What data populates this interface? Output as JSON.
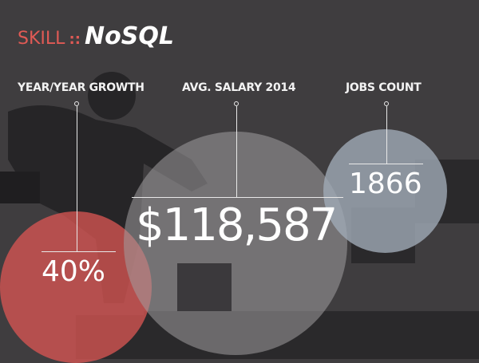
{
  "header": {
    "prefix": "SKILL",
    "separator": "::",
    "skill": "NoSQL"
  },
  "metrics": [
    {
      "label": "YEAR/YEAR GROWTH",
      "value": "40%"
    },
    {
      "label": "AVG. SALARY 2014",
      "value": "$118,587"
    },
    {
      "label": "JOBS COUNT",
      "value": "1866"
    }
  ],
  "colors": {
    "background": "#3f3d3f",
    "accent": "#e05a55",
    "growth_bubble": "#c9504f",
    "salary_bubble": "#8f8e8f",
    "jobs_bubble": "#9aa3ae"
  }
}
